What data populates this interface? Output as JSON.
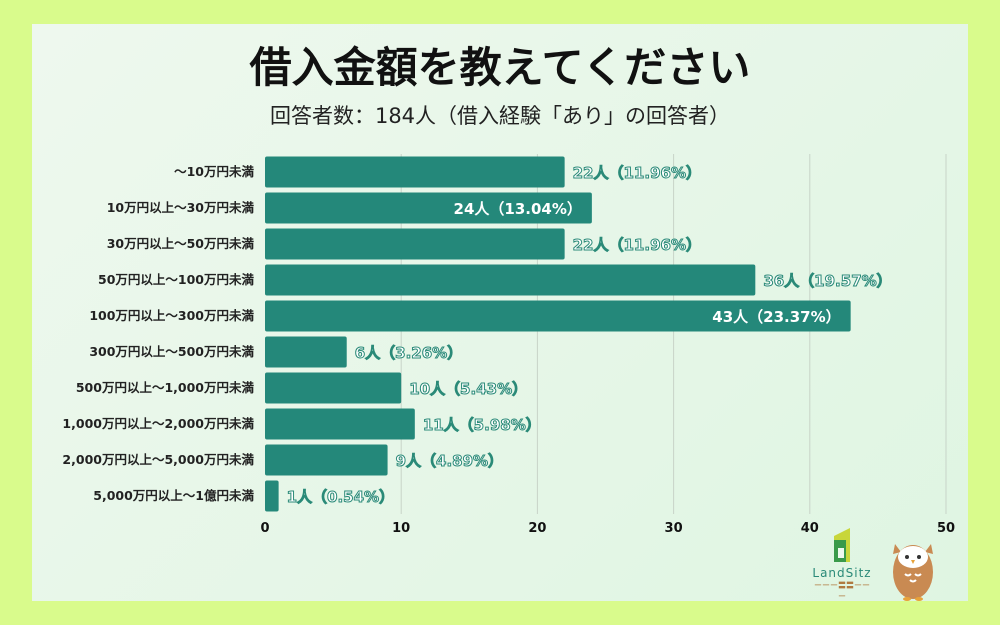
{
  "title": "借入金額を教えてください",
  "subtitle": "回答者数：184人（借入経験「あり」の回答者）",
  "logo": {
    "name": "LandSitz",
    "tagline": "ーーー〓〓ーーー"
  },
  "colors": {
    "bar": "#24887a",
    "background": "#d9fb8c",
    "label_outline": "#2a8a78"
  },
  "chart_data": {
    "type": "bar",
    "orientation": "horizontal",
    "title": "借入金額を教えてください",
    "subtitle": "回答者数：184人（借入経験「あり」の回答者）",
    "categories": [
      "〜10万円未満",
      "10万円以上〜30万円未満",
      "30万円以上〜50万円未満",
      "50万円以上〜100万円未満",
      "100万円以上〜300万円未満",
      "300万円以上〜500万円未満",
      "500万円以上〜1,000万円未満",
      "1,000万円以上〜2,000万円未満",
      "2,000万円以上〜5,000万円未満",
      "5,000万円以上〜1億円未満"
    ],
    "values": [
      22,
      24,
      22,
      36,
      43,
      6,
      10,
      11,
      9,
      1
    ],
    "data_labels": [
      "22人（11.96%）",
      "24人（13.04%）",
      "22人（11.96%）",
      "36人（19.57%）",
      "43人（23.37%）",
      "6人（3.26%）",
      "10人（5.43%）",
      "11人（5.98%）",
      "9人（4.89%）",
      "1人（0.54%）"
    ],
    "label_inside": [
      false,
      true,
      false,
      false,
      true,
      false,
      false,
      false,
      false,
      false
    ],
    "xlim": [
      0,
      50
    ],
    "xticks": [
      "0",
      "10",
      "20",
      "30",
      "40",
      "50"
    ],
    "xlabel": "",
    "ylabel": "",
    "grid": true
  }
}
